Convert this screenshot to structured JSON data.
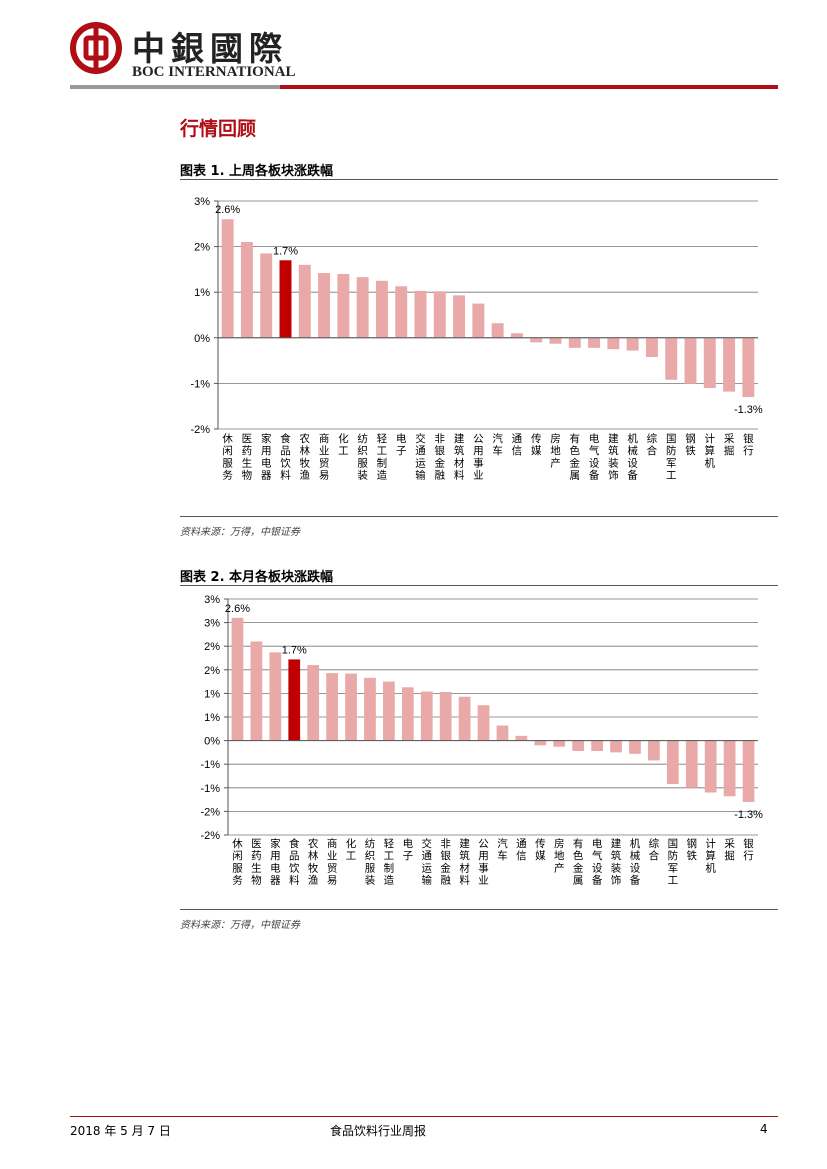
{
  "header": {
    "logo_cn": "中銀國際",
    "logo_en": "BOC INTERNATIONAL",
    "logo_icon": "boc-logo-icon"
  },
  "section_title": "行情回顾",
  "figures": [
    {
      "title": "图表 1. 上周各板块涨跌幅",
      "source": "资料来源：万得，中银证券"
    },
    {
      "title": "图表 2. 本月各板块涨跌幅",
      "source": "资料来源：万得，中银证券"
    }
  ],
  "chart_data": [
    {
      "type": "bar",
      "categories": [
        "休闲服务",
        "医药生物",
        "家用电器",
        "食品饮料",
        "农林牧渔",
        "商业贸易",
        "化工",
        "纺织服装",
        "轻工制造",
        "电子",
        "交通运输",
        "非银金融",
        "建筑材料",
        "公用事业",
        "汽车",
        "通信",
        "传媒",
        "房地产",
        "有色金属",
        "电气设备",
        "建筑装饰",
        "机械设备",
        "综合",
        "国防军工",
        "钢铁",
        "计算机",
        "采掘",
        "银行"
      ],
      "values": [
        2.6,
        2.1,
        1.85,
        1.7,
        1.6,
        1.42,
        1.4,
        1.33,
        1.25,
        1.13,
        1.03,
        1.02,
        0.93,
        0.75,
        0.32,
        0.1,
        -0.1,
        -0.13,
        -0.22,
        -0.22,
        -0.25,
        -0.28,
        -0.42,
        -0.92,
        -1.0,
        -1.1,
        -1.18,
        -1.3
      ],
      "ylim": [
        -2,
        3
      ],
      "ytick_labels": [
        "3%",
        "2%",
        "1%",
        "0%",
        "-1%",
        "-2%"
      ],
      "data_labels": [
        {
          "index": 0,
          "text": "2.6%"
        },
        {
          "index": 3,
          "text": "1.7%"
        },
        {
          "index": 27,
          "text": "-1.3%"
        }
      ],
      "highlight_index": 3,
      "colors": {
        "bar": "#e9a9a9",
        "highlight": "#c00000"
      },
      "grid": true
    },
    {
      "type": "bar",
      "categories": [
        "休闲服务",
        "医药生物",
        "家用电器",
        "食品饮料",
        "农林牧渔",
        "商业贸易",
        "化工",
        "纺织服装",
        "轻工制造",
        "电子",
        "交通运输",
        "非银金融",
        "建筑材料",
        "公用事业",
        "汽车",
        "通信",
        "传媒",
        "房地产",
        "有色金属",
        "电气设备",
        "建筑装饰",
        "机械设备",
        "综合",
        "国防军工",
        "钢铁",
        "计算机",
        "采掘",
        "银行"
      ],
      "values": [
        2.6,
        2.1,
        1.87,
        1.72,
        1.6,
        1.43,
        1.42,
        1.33,
        1.25,
        1.13,
        1.04,
        1.03,
        0.93,
        0.75,
        0.32,
        0.1,
        -0.1,
        -0.13,
        -0.22,
        -0.22,
        -0.25,
        -0.28,
        -0.42,
        -0.92,
        -1.0,
        -1.1,
        -1.18,
        -1.3
      ],
      "ylim": [
        -2,
        3
      ],
      "ytick_labels": [
        "3%",
        "3%",
        "2%",
        "2%",
        "1%",
        "1%",
        "0%",
        "-1%",
        "-1%",
        "-2%",
        "-2%"
      ],
      "data_labels": [
        {
          "index": 0,
          "text": "2.6%"
        },
        {
          "index": 3,
          "text": "1.7%"
        },
        {
          "index": 27,
          "text": "-1.3%"
        }
      ],
      "highlight_index": 3,
      "colors": {
        "bar": "#e9a9a9",
        "highlight": "#c00000"
      },
      "grid": true
    }
  ],
  "footer": {
    "date": "2018 年 5 月 7 日",
    "title": "食品饮料行业周报",
    "page": "4"
  }
}
